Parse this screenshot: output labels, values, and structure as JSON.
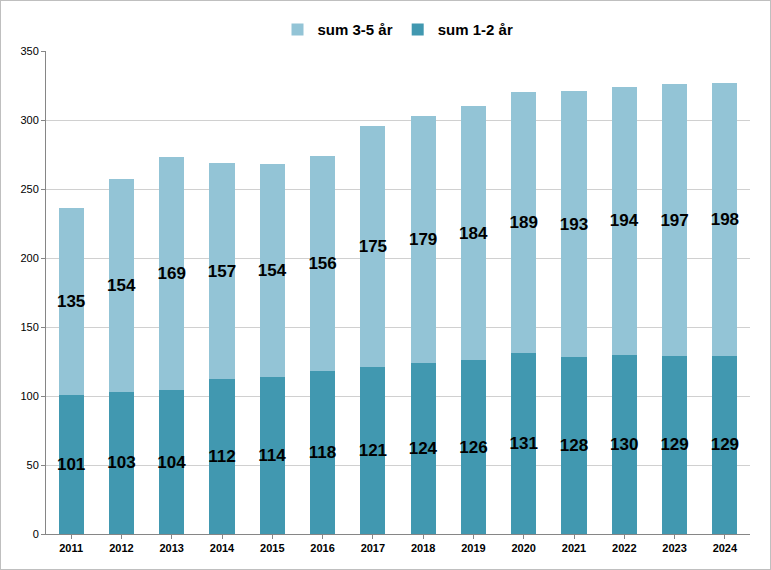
{
  "chart_data": {
    "type": "bar",
    "stacked": true,
    "data_labels": true,
    "grid": true,
    "legend": "top",
    "categories": [
      "2011",
      "2012",
      "2013",
      "2014",
      "2015",
      "2016",
      "2017",
      "2018",
      "2019",
      "2020",
      "2021",
      "2022",
      "2023",
      "2024"
    ],
    "series": [
      {
        "name": "sum 1-2 år",
        "color": "#4198b0",
        "values": [
          101,
          103,
          104,
          112,
          114,
          118,
          121,
          124,
          126,
          131,
          128,
          130,
          129,
          129
        ]
      },
      {
        "name": "sum 3-5 år",
        "color": "#93c4d6",
        "values": [
          135,
          154,
          169,
          157,
          154,
          156,
          175,
          179,
          184,
          189,
          193,
          194,
          197,
          198
        ]
      }
    ],
    "ylim": [
      0,
      350
    ],
    "yticks": [
      0,
      50,
      100,
      150,
      200,
      250,
      300,
      350
    ]
  }
}
